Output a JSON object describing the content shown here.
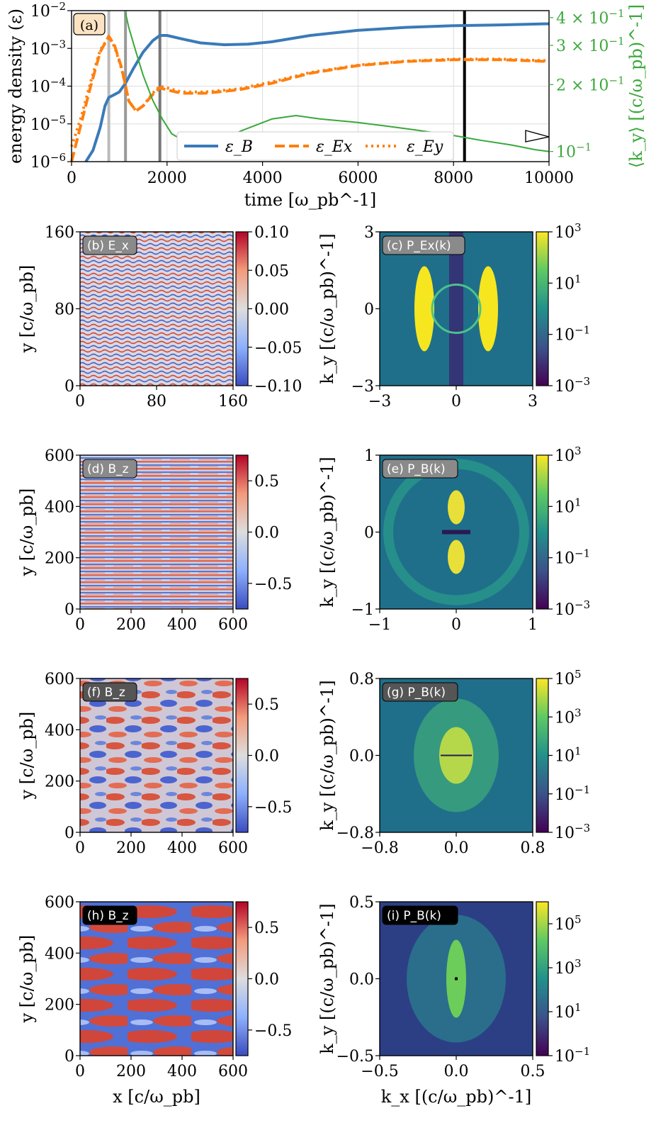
{
  "chart_data": [
    {
      "type": "line",
      "label": "(a)",
      "xlabel": "time [ω_pb^-1]",
      "ylabel": "energy density (ε)",
      "ylabel_right": "⟨k_y⟩ [(c/ω_pb)^-1]",
      "xlim": [
        0,
        10000
      ],
      "ylim": [
        1e-06,
        0.01
      ],
      "ylim_right": [
        0.09,
        0.43
      ],
      "xticks": [
        "0",
        "2000",
        "4000",
        "6000",
        "8000",
        "10000"
      ],
      "yticks": [
        "10^-6",
        "10^-5",
        "10^-4",
        "10^-3",
        "10^-2"
      ],
      "yticks_right": [
        "10^-1",
        "2 × 10^-1",
        "3 × 10^-1",
        "4 × 10^-1"
      ],
      "vlines": [
        {
          "x": 780,
          "color": "#bbbbbb"
        },
        {
          "x": 1130,
          "color": "#999999"
        },
        {
          "x": 1850,
          "color": "#777777"
        },
        {
          "x": 8230,
          "color": "#000000"
        }
      ],
      "legend": "bottom-right",
      "series": [
        {
          "name": "ε_B",
          "style": "solid",
          "color": "#3a7ab8",
          "x": [
            300,
            450,
            600,
            700,
            780,
            900,
            1000,
            1130,
            1300,
            1500,
            1700,
            1850,
            2000,
            2300,
            2700,
            3200,
            3700,
            4200,
            5000,
            6000,
            7000,
            8000,
            9000,
            10000
          ],
          "y": [
            1e-06,
            2e-06,
            8e-06,
            3e-05,
            5e-05,
            6e-05,
            7e-05,
            0.00012,
            0.0003,
            0.0008,
            0.0016,
            0.0022,
            0.0022,
            0.0018,
            0.0014,
            0.00125,
            0.0013,
            0.0015,
            0.0022,
            0.003,
            0.0036,
            0.004,
            0.0042,
            0.0045
          ]
        },
        {
          "name": "ε_Ex",
          "style": "dashed",
          "color": "#ff7f0e",
          "x": [
            0,
            200,
            400,
            600,
            780,
            900,
            1050,
            1200,
            1350,
            1500,
            1700,
            1850,
            2000,
            2300,
            2800,
            3500,
            4200,
            5000,
            6000,
            7000,
            8000,
            9000,
            10000
          ],
          "y": [
            1e-06,
            1e-05,
            0.0001,
            0.0008,
            0.0021,
            0.0012,
            0.0003,
            4e-05,
            2.2e-05,
            3e-05,
            6e-05,
            9e-05,
            8e-05,
            6.5e-05,
            6.5e-05,
            8e-05,
            0.00012,
            0.00022,
            0.00035,
            0.00045,
            0.0005,
            0.0005,
            0.00045
          ]
        },
        {
          "name": "ε_Ey",
          "style": "dotted",
          "color": "#ff7f0e",
          "x": [
            0,
            200,
            400,
            600,
            780,
            900,
            1050,
            1200,
            1350,
            1500,
            1700,
            1850,
            2000,
            2300,
            2800,
            3500,
            4200,
            5000,
            6000,
            7000,
            8000,
            9000,
            10000
          ],
          "y": [
            2.5e-06,
            1.5e-05,
            0.00013,
            0.0009,
            0.002,
            0.0011,
            0.00028,
            4e-05,
            2.2e-05,
            3e-05,
            6.5e-05,
            0.0001,
            9e-05,
            7e-05,
            7e-05,
            8.5e-05,
            0.00013,
            0.00023,
            0.00036,
            0.00046,
            0.00052,
            0.00052,
            0.00047
          ]
        },
        {
          "name": "⟨k_y⟩",
          "style": "solid",
          "color": "#3aa83a",
          "axis": "right",
          "x": [
            1130,
            1200,
            1350,
            1500,
            1700,
            1900,
            2100,
            2400,
            3000,
            3600,
            4200,
            4700,
            5200,
            6000,
            6600,
            7200,
            8000,
            8600,
            9200,
            9700,
            10000
          ],
          "y": [
            0.42,
            0.36,
            0.28,
            0.22,
            0.17,
            0.14,
            0.12,
            0.11,
            0.11,
            0.125,
            0.14,
            0.145,
            0.14,
            0.135,
            0.13,
            0.125,
            0.118,
            0.112,
            0.107,
            0.102,
            0.1
          ]
        }
      ]
    },
    {
      "type": "heatmap",
      "label": "(b) E_x",
      "ylabel": "y [c/ω_pb]",
      "xlim": [
        0,
        160
      ],
      "ylim": [
        0,
        160
      ],
      "xticks": [
        "0",
        "80",
        "160"
      ],
      "yticks": [
        "0",
        "80",
        "160"
      ],
      "colorbar": {
        "ticks": [
          "0.10",
          "0.05",
          "0.00",
          "−0.05",
          "−0.10"
        ],
        "range": [
          -0.1,
          0.1
        ],
        "cmap": "coolwarm"
      }
    },
    {
      "type": "heatmap",
      "label": "(c) P_Ex(k)",
      "ylabel": "k_y [(c/ω_pb)^-1]",
      "xlim": [
        -3,
        3
      ],
      "ylim": [
        -3,
        3
      ],
      "xticks": [
        "−3",
        "0",
        "3"
      ],
      "yticks": [
        "−3",
        "0",
        "3"
      ],
      "colorbar": {
        "ticks": [
          "10^3",
          "10^1",
          "10^-1",
          "10^-3"
        ],
        "range": [
          0.001,
          1000
        ],
        "cmap": "viridis"
      }
    },
    {
      "type": "heatmap",
      "label": "(d) B_z",
      "ylabel": "y [c/ω_pb]",
      "xlim": [
        0,
        600
      ],
      "ylim": [
        0,
        600
      ],
      "xticks": [
        "0",
        "200",
        "400",
        "600"
      ],
      "yticks": [
        "0",
        "200",
        "400",
        "600"
      ],
      "colorbar": {
        "ticks": [
          "0.5",
          "0.0",
          "−0.5"
        ],
        "range": [
          -0.75,
          0.75
        ],
        "cmap": "coolwarm"
      }
    },
    {
      "type": "heatmap",
      "label": "(e) P_B(k)",
      "ylabel": "k_y [(c/ω_pb)^-1]",
      "xlim": [
        -1,
        1
      ],
      "ylim": [
        -1,
        1
      ],
      "xticks": [
        "−1",
        "0",
        "1"
      ],
      "yticks": [
        "−1",
        "0",
        "1"
      ],
      "colorbar": {
        "ticks": [
          "10^3",
          "10^1",
          "10^-1",
          "10^-3"
        ],
        "range": [
          0.001,
          1000
        ],
        "cmap": "viridis"
      }
    },
    {
      "type": "heatmap",
      "label": "(f) B_z",
      "ylabel": "y [c/ω_pb]",
      "xlim": [
        0,
        600
      ],
      "ylim": [
        0,
        600
      ],
      "xticks": [
        "0",
        "200",
        "400",
        "600"
      ],
      "yticks": [
        "0",
        "200",
        "400",
        "600"
      ],
      "colorbar": {
        "ticks": [
          "0.5",
          "0.0",
          "−0.5"
        ],
        "range": [
          -0.75,
          0.75
        ],
        "cmap": "coolwarm"
      }
    },
    {
      "type": "heatmap",
      "label": "(g) P_B(k)",
      "ylabel": "k_y [(c/ω_pb)^-1]",
      "xlim": [
        -0.8,
        0.8
      ],
      "ylim": [
        -0.8,
        0.8
      ],
      "xticks": [
        "−0.8",
        "0.0",
        "0.8"
      ],
      "yticks": [
        "−0.8",
        "0.0",
        "0.8"
      ],
      "colorbar": {
        "ticks": [
          "10^5",
          "10^3",
          "10^1",
          "10^-1",
          "10^-3"
        ],
        "range": [
          0.001,
          100000
        ],
        "cmap": "viridis"
      }
    },
    {
      "type": "heatmap",
      "label": "(h) B_z",
      "xlabel": "x [c/ω_pb]",
      "ylabel": "y [c/ω_pb]",
      "xlim": [
        0,
        600
      ],
      "ylim": [
        0,
        600
      ],
      "xticks": [
        "0",
        "200",
        "400",
        "600"
      ],
      "yticks": [
        "0",
        "200",
        "400",
        "600"
      ],
      "colorbar": {
        "ticks": [
          "0.5",
          "0.0",
          "−0.5"
        ],
        "range": [
          -0.75,
          0.75
        ],
        "cmap": "coolwarm"
      }
    },
    {
      "type": "heatmap",
      "label": "(i) P_B(k)",
      "xlabel": "k_x [(c/ω_pb)^-1]",
      "ylabel": "k_y [(c/ω_pb)^-1]",
      "xlim": [
        -0.5,
        0.5
      ],
      "ylim": [
        -0.5,
        0.5
      ],
      "xticks": [
        "−0.5",
        "0.0",
        "0.5"
      ],
      "yticks": [
        "−0.5",
        "0.0",
        "0.5"
      ],
      "colorbar": {
        "ticks": [
          "10^5",
          "10^3",
          "10^1",
          "10^-1"
        ],
        "range": [
          0.1,
          1000000
        ],
        "cmap": "viridis"
      }
    }
  ]
}
